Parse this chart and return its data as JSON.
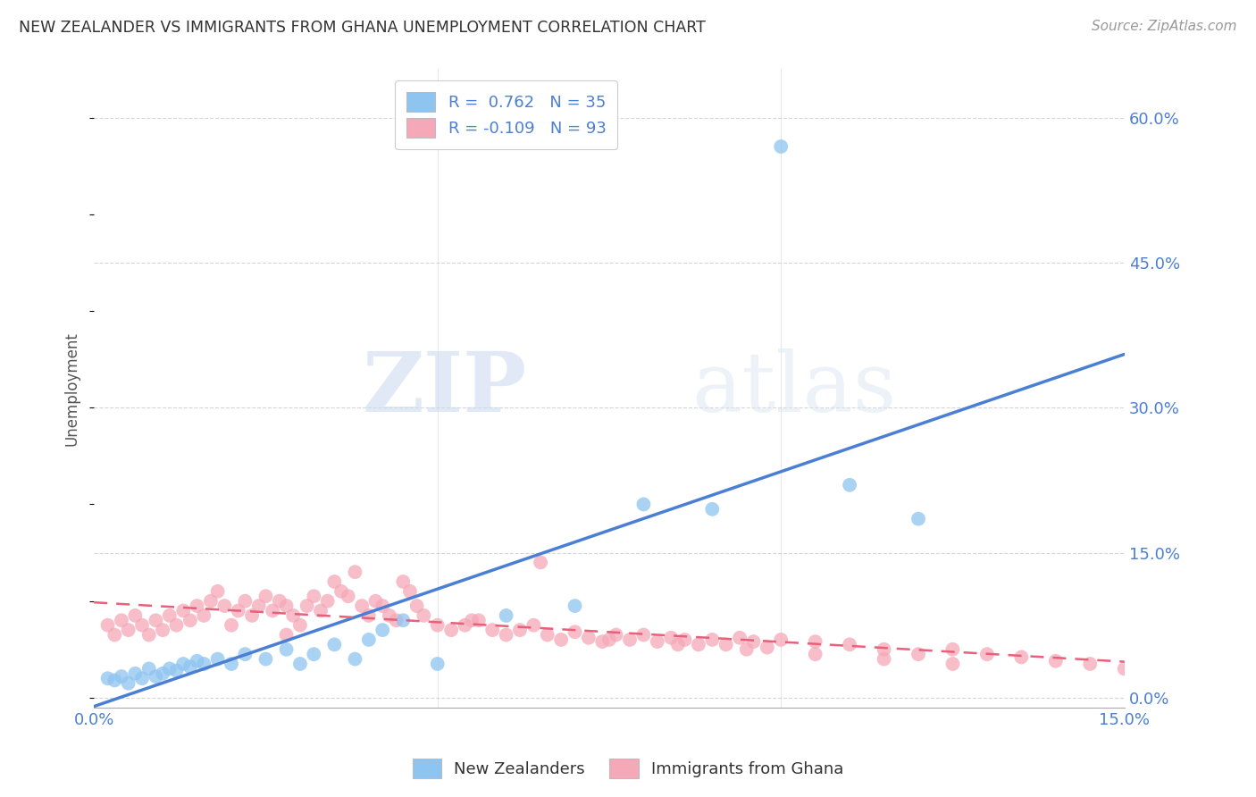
{
  "title": "NEW ZEALANDER VS IMMIGRANTS FROM GHANA UNEMPLOYMENT CORRELATION CHART",
  "source": "Source: ZipAtlas.com",
  "ylabel_label": "Unemployment",
  "right_yticks": [
    0.0,
    0.15,
    0.3,
    0.45,
    0.6
  ],
  "right_ytick_labels": [
    "0.0%",
    "15.0%",
    "30.0%",
    "45.0%",
    "60.0%"
  ],
  "xmin": 0.0,
  "xmax": 0.15,
  "ymin": -0.01,
  "ymax": 0.65,
  "blue_R": 0.762,
  "blue_N": 35,
  "pink_R": -0.109,
  "pink_N": 93,
  "blue_scatter_x": [
    0.002,
    0.003,
    0.004,
    0.005,
    0.006,
    0.007,
    0.008,
    0.009,
    0.01,
    0.011,
    0.012,
    0.013,
    0.014,
    0.015,
    0.016,
    0.018,
    0.02,
    0.022,
    0.025,
    0.028,
    0.03,
    0.032,
    0.035,
    0.038,
    0.04,
    0.042,
    0.045,
    0.05,
    0.06,
    0.07,
    0.08,
    0.09,
    0.1,
    0.11,
    0.12
  ],
  "blue_scatter_y": [
    0.02,
    0.018,
    0.022,
    0.015,
    0.025,
    0.02,
    0.03,
    0.022,
    0.025,
    0.03,
    0.028,
    0.035,
    0.032,
    0.038,
    0.035,
    0.04,
    0.035,
    0.045,
    0.04,
    0.05,
    0.035,
    0.045,
    0.055,
    0.04,
    0.06,
    0.07,
    0.08,
    0.035,
    0.085,
    0.095,
    0.2,
    0.195,
    0.57,
    0.22,
    0.185
  ],
  "pink_scatter_x": [
    0.002,
    0.003,
    0.004,
    0.005,
    0.006,
    0.007,
    0.008,
    0.009,
    0.01,
    0.011,
    0.012,
    0.013,
    0.014,
    0.015,
    0.016,
    0.017,
    0.018,
    0.019,
    0.02,
    0.021,
    0.022,
    0.023,
    0.024,
    0.025,
    0.026,
    0.027,
    0.028,
    0.029,
    0.03,
    0.031,
    0.032,
    0.033,
    0.034,
    0.035,
    0.036,
    0.037,
    0.038,
    0.039,
    0.04,
    0.041,
    0.042,
    0.043,
    0.044,
    0.045,
    0.046,
    0.047,
    0.048,
    0.05,
    0.052,
    0.054,
    0.056,
    0.058,
    0.06,
    0.062,
    0.064,
    0.066,
    0.068,
    0.07,
    0.072,
    0.074,
    0.076,
    0.078,
    0.08,
    0.082,
    0.084,
    0.086,
    0.088,
    0.09,
    0.092,
    0.094,
    0.096,
    0.098,
    0.1,
    0.105,
    0.11,
    0.115,
    0.12,
    0.125,
    0.13,
    0.135,
    0.14,
    0.145,
    0.15,
    0.028,
    0.055,
    0.065,
    0.075,
    0.085,
    0.095,
    0.105,
    0.115,
    0.125
  ],
  "pink_scatter_y": [
    0.075,
    0.065,
    0.08,
    0.07,
    0.085,
    0.075,
    0.065,
    0.08,
    0.07,
    0.085,
    0.075,
    0.09,
    0.08,
    0.095,
    0.085,
    0.1,
    0.11,
    0.095,
    0.075,
    0.09,
    0.1,
    0.085,
    0.095,
    0.105,
    0.09,
    0.1,
    0.095,
    0.085,
    0.075,
    0.095,
    0.105,
    0.09,
    0.1,
    0.12,
    0.11,
    0.105,
    0.13,
    0.095,
    0.085,
    0.1,
    0.095,
    0.085,
    0.08,
    0.12,
    0.11,
    0.095,
    0.085,
    0.075,
    0.07,
    0.075,
    0.08,
    0.07,
    0.065,
    0.07,
    0.075,
    0.065,
    0.06,
    0.068,
    0.062,
    0.058,
    0.065,
    0.06,
    0.065,
    0.058,
    0.062,
    0.06,
    0.055,
    0.06,
    0.055,
    0.062,
    0.058,
    0.052,
    0.06,
    0.058,
    0.055,
    0.05,
    0.045,
    0.05,
    0.045,
    0.042,
    0.038,
    0.035,
    0.03,
    0.065,
    0.08,
    0.14,
    0.06,
    0.055,
    0.05,
    0.045,
    0.04,
    0.035
  ],
  "blue_color": "#8ec4f0",
  "pink_color": "#f5a8b8",
  "blue_line_color": "#4a7fd4",
  "pink_line_color": "#e8607a",
  "watermark_zip": "ZIP",
  "watermark_atlas": "atlas",
  "background_color": "#ffffff",
  "grid_color": "#cccccc",
  "legend_blue_label": "R =  0.762   N = 35",
  "legend_pink_label": "R = -0.109   N = 93",
  "bottom_legend_blue": "New Zealanders",
  "bottom_legend_pink": "Immigrants from Ghana"
}
